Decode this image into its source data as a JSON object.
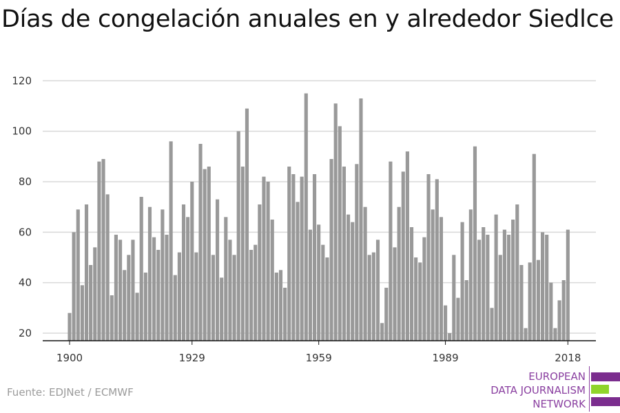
{
  "title": "Días de congelación anuales en y alrededor Siedlce",
  "source": "Fuente: EDJNet / ECMWF",
  "logo": {
    "line1": "EUROPEAN",
    "line2": "DATA JOURNALISM",
    "line3": "NETWORK",
    "colors": {
      "purple": "#7b2d8e",
      "green": "#8fd42a",
      "text": "#8a3fa0"
    }
  },
  "colors": {
    "bar": "#999999",
    "grid": "#d9d9d9",
    "axis": "#111111",
    "text": "#333333"
  },
  "chart_data": {
    "type": "bar",
    "xlabel": "",
    "ylabel": "",
    "ylim": [
      17,
      122
    ],
    "yticks": [
      20,
      40,
      60,
      80,
      100,
      120
    ],
    "xticks": [
      1900,
      1929,
      1959,
      1989,
      2018
    ],
    "grid": true,
    "years_start": 1900,
    "years_end": 2018,
    "values": [
      28,
      60,
      69,
      39,
      71,
      47,
      54,
      88,
      89,
      75,
      35,
      59,
      57,
      45,
      51,
      57,
      36,
      74,
      44,
      70,
      58,
      53,
      69,
      59,
      96,
      43,
      52,
      71,
      66,
      80,
      52,
      95,
      85,
      86,
      51,
      73,
      42,
      66,
      57,
      51,
      100,
      86,
      109,
      53,
      55,
      71,
      82,
      80,
      65,
      44,
      45,
      38,
      86,
      83,
      72,
      82,
      115,
      61,
      83,
      63,
      55,
      50,
      89,
      111,
      102,
      86,
      67,
      64,
      87,
      113,
      70,
      51,
      52,
      57,
      24,
      38,
      88,
      54,
      70,
      84,
      92,
      62,
      50,
      48,
      58,
      83,
      69,
      81,
      66,
      31,
      20,
      51,
      34,
      64,
      41,
      69,
      94,
      57,
      62,
      59,
      30,
      67,
      51,
      61,
      59,
      65,
      71,
      47,
      22,
      48,
      91,
      49,
      60,
      59,
      40,
      22,
      33,
      41,
      61
    ]
  }
}
